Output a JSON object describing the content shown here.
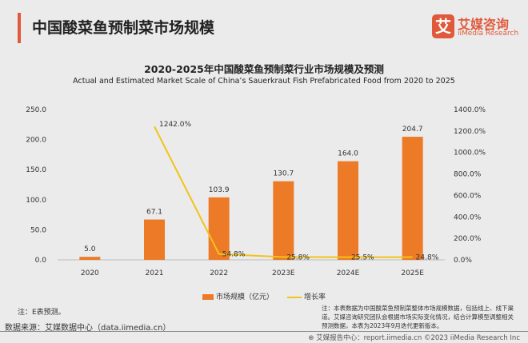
{
  "header": {
    "title": "中国酸菜鱼预制菜市场规模",
    "logo_mark": "艾",
    "logo_cn": "艾媒咨询",
    "logo_en": "iiMedia Research"
  },
  "chart_data": {
    "type": "bar+line",
    "title": "2020-2025年中国酸菜鱼预制菜行业市场规模及预测",
    "subtitle": "Actual and Estimated Market Scale of China’s Sauerkraut Fish Prefabricated Food from 2020 to 2025",
    "categories": [
      "2020",
      "2021",
      "2022",
      "2023E",
      "2024E",
      "2025E"
    ],
    "series": [
      {
        "name": "市场规模（亿元）",
        "type": "bar",
        "axis": "left",
        "color": "#ec7a27",
        "values": [
          5.0,
          67.1,
          103.9,
          130.7,
          164.0,
          204.7
        ],
        "labels": [
          "5.0",
          "67.1",
          "103.9",
          "130.7",
          "164.0",
          "204.7"
        ]
      },
      {
        "name": "增长率",
        "type": "line",
        "axis": "right",
        "color": "#f2c318",
        "values": [
          null,
          1242.0,
          54.8,
          25.8,
          25.5,
          24.8
        ],
        "labels": [
          "",
          "1242.0%",
          "54.8%",
          "25.8%",
          "25.5%",
          "24.8%"
        ]
      }
    ],
    "left_axis": {
      "ylim": [
        0,
        250
      ],
      "ticks": [
        "0.0",
        "50.0",
        "100.0",
        "150.0",
        "200.0",
        "250.0"
      ]
    },
    "right_axis": {
      "ylim": [
        0,
        1400
      ],
      "ticks": [
        "0.0%",
        "200.0%",
        "400.0%",
        "600.0%",
        "800.0%",
        "1000.0%",
        "1200.0%",
        "1400.0%"
      ]
    },
    "grid": false,
    "legend": "bottom"
  },
  "footer": {
    "note_left": "注：E表预测。",
    "source": "数据来源：艾媒数据中心（data.iimedia.cn）",
    "note_right": "注：本表数据为中国酸菜鱼预制菜整体市场规模数据，包括线上、线下渠道。艾媒咨询研究团队会根据市场实际变化情况，结合计算模型调整相关预测数据，本表为2023年9月迭代更新版本。",
    "copyright": "⊕ 艾媒报告中心：report.iimedia.cn  ©2023  iiMedia Research Inc"
  }
}
